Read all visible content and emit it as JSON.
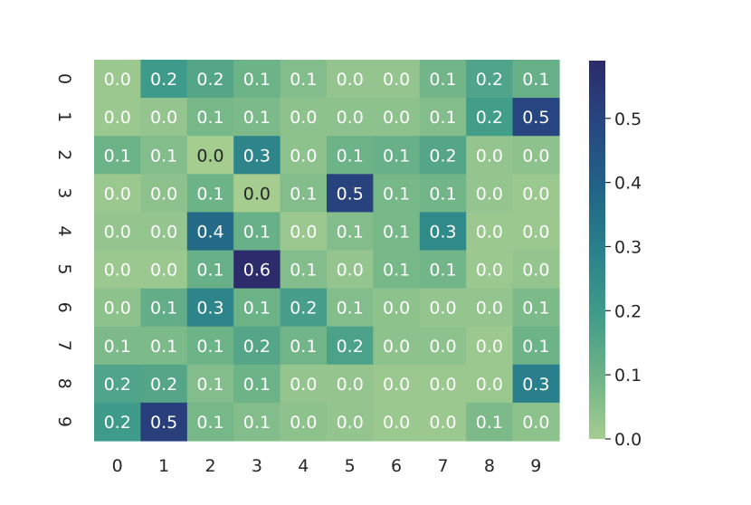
{
  "chart_data": {
    "type": "heatmap",
    "title": "",
    "xlabel": "",
    "ylabel": "",
    "x_categories": [
      "0",
      "1",
      "2",
      "3",
      "4",
      "5",
      "6",
      "7",
      "8",
      "9"
    ],
    "y_categories": [
      "0",
      "1",
      "2",
      "3",
      "4",
      "5",
      "6",
      "7",
      "8",
      "9"
    ],
    "values": [
      [
        0.02,
        0.2,
        0.15,
        0.1,
        0.06,
        0.03,
        0.03,
        0.09,
        0.16,
        0.11
      ],
      [
        0.02,
        0.03,
        0.08,
        0.07,
        0.04,
        0.04,
        0.04,
        0.06,
        0.19,
        0.5
      ],
      [
        0.1,
        0.06,
        0.0,
        0.28,
        0.04,
        0.1,
        0.11,
        0.15,
        0.03,
        0.04
      ],
      [
        0.02,
        0.04,
        0.1,
        0.0,
        0.06,
        0.51,
        0.08,
        0.09,
        0.03,
        0.02
      ],
      [
        0.03,
        0.03,
        0.37,
        0.11,
        0.02,
        0.06,
        0.08,
        0.26,
        0.02,
        0.02
      ],
      [
        0.02,
        0.02,
        0.11,
        0.59,
        0.06,
        0.03,
        0.08,
        0.09,
        0.02,
        0.03
      ],
      [
        0.04,
        0.12,
        0.28,
        0.1,
        0.18,
        0.06,
        0.04,
        0.03,
        0.03,
        0.07
      ],
      [
        0.07,
        0.07,
        0.1,
        0.15,
        0.09,
        0.17,
        0.04,
        0.04,
        0.02,
        0.1
      ],
      [
        0.16,
        0.15,
        0.06,
        0.1,
        0.03,
        0.03,
        0.02,
        0.02,
        0.02,
        0.3
      ],
      [
        0.2,
        0.52,
        0.08,
        0.06,
        0.04,
        0.03,
        0.02,
        0.02,
        0.07,
        0.04
      ]
    ],
    "annotations": [
      [
        "0.0",
        "0.2",
        "0.2",
        "0.1",
        "0.1",
        "0.0",
        "0.0",
        "0.1",
        "0.2",
        "0.1"
      ],
      [
        "0.0",
        "0.0",
        "0.1",
        "0.1",
        "0.0",
        "0.0",
        "0.0",
        "0.1",
        "0.2",
        "0.5"
      ],
      [
        "0.1",
        "0.1",
        "0.0",
        "0.3",
        "0.0",
        "0.1",
        "0.1",
        "0.2",
        "0.0",
        "0.0"
      ],
      [
        "0.0",
        "0.0",
        "0.1",
        "0.0",
        "0.1",
        "0.5",
        "0.1",
        "0.1",
        "0.0",
        "0.0"
      ],
      [
        "0.0",
        "0.0",
        "0.4",
        "0.1",
        "0.0",
        "0.1",
        "0.1",
        "0.3",
        "0.0",
        "0.0"
      ],
      [
        "0.0",
        "0.0",
        "0.1",
        "0.6",
        "0.1",
        "0.0",
        "0.1",
        "0.1",
        "0.0",
        "0.0"
      ],
      [
        "0.0",
        "0.1",
        "0.3",
        "0.1",
        "0.2",
        "0.1",
        "0.0",
        "0.0",
        "0.0",
        "0.1"
      ],
      [
        "0.1",
        "0.1",
        "0.1",
        "0.2",
        "0.1",
        "0.2",
        "0.0",
        "0.0",
        "0.0",
        "0.1"
      ],
      [
        "0.2",
        "0.2",
        "0.1",
        "0.1",
        "0.0",
        "0.0",
        "0.0",
        "0.0",
        "0.0",
        "0.3"
      ],
      [
        "0.2",
        "0.5",
        "0.1",
        "0.1",
        "0.0",
        "0.0",
        "0.0",
        "0.0",
        "0.1",
        "0.0"
      ]
    ],
    "vmin": 0.0,
    "vmax": 0.59,
    "colormap": "crest",
    "colormap_stops": [
      "#a5cd90",
      "#6db388",
      "#3f9b89",
      "#2a808b",
      "#206387",
      "#274782",
      "#2c2b6b"
    ],
    "colorbar": {
      "ticks": [
        0.0,
        0.1,
        0.2,
        0.3,
        0.4,
        0.5
      ],
      "tick_labels": [
        "0.0",
        "0.1",
        "0.2",
        "0.3",
        "0.4",
        "0.5"
      ],
      "position": "right"
    },
    "grid": false
  }
}
